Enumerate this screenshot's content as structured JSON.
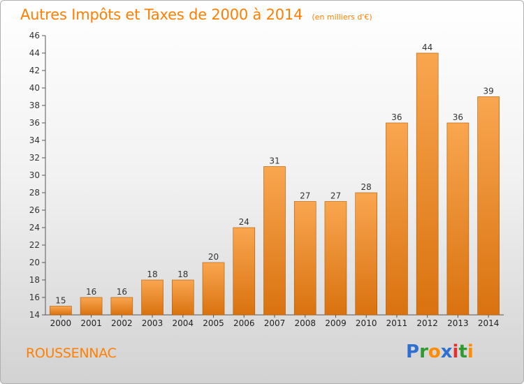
{
  "chart_data": {
    "type": "bar",
    "title": "Autres Impôts et Taxes de 2000 à 2014",
    "subtitle": "(en milliers d'€)",
    "xlabel": "",
    "ylabel": "",
    "categories": [
      "2000",
      "2001",
      "2002",
      "2003",
      "2004",
      "2005",
      "2006",
      "2007",
      "2008",
      "2009",
      "2010",
      "2011",
      "2012",
      "2013",
      "2014"
    ],
    "values": [
      15,
      16,
      16,
      18,
      18,
      20,
      24,
      31,
      27,
      27,
      28,
      36,
      44,
      36,
      39
    ],
    "ylim": [
      14,
      46
    ],
    "yticks": [
      14,
      16,
      18,
      20,
      22,
      24,
      26,
      28,
      30,
      32,
      34,
      36,
      38,
      40,
      42,
      44,
      46
    ],
    "grid": false,
    "legend": "none",
    "bar_color_top": "#f9a650",
    "bar_color_bottom": "#d9720f",
    "bar_edge_color": "#b05a00"
  },
  "footer": {
    "commune": "ROUSSENNAC",
    "logo": {
      "letters": [
        {
          "ch": "P",
          "color": "#2f6fd0"
        },
        {
          "ch": "r",
          "color": "#2f9a2f"
        },
        {
          "ch": "o",
          "color": "#ff8c00"
        },
        {
          "ch": "x",
          "color": "#2f6fd0"
        },
        {
          "ch": "i",
          "color": "#e03030"
        },
        {
          "ch": "t",
          "color": "#2f9a2f"
        },
        {
          "ch": "i",
          "color": "#ff8c00"
        }
      ]
    }
  }
}
